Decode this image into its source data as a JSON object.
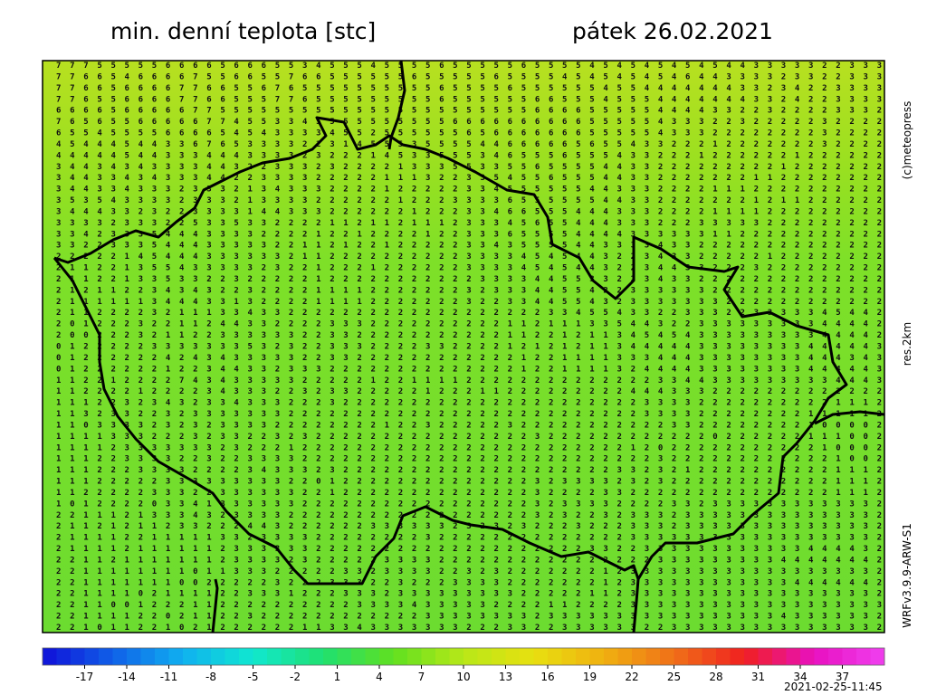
{
  "header": {
    "title": "min. denní teplota [stc]",
    "date": "pátek 26.02.2021"
  },
  "side_labels": {
    "copyright": "(c)meteopress",
    "resolution": "res.2km",
    "model": "WRFv3.9.9-ARW-S1"
  },
  "footer": {
    "timestamp": "2021-02-25-11:45"
  },
  "grid": {
    "rows": [
      "7775555566665666553455545555655555655554545454545443333322333",
      "7766546666755665576655555565555565555454545454644333323322333",
      "7766566667766556765555555555655556555555455444444433234223333",
      "7765566667766555776555555555655555566555455544444443324223333",
      "6666566666775555555555555555555555566665555544443322322223332",
      "7656556666677455334555555555566666666665555543332232222232222",
      "6554555566665454333345525555556566666665555543332222222232222",
      "4544454433676533332231455535555446666656554332221222222232222",
      "4444454433344433332322214533555346555655543322212222221222222",
      "3443434333344322333232222133355335565555443322222222212222222",
      "3443343433344223333222221113223354556555443322222221122222222",
      "3443343332333213433322221222223345555554433322221112222222222",
      "3535433332333213333222222122233336555555443322222221211222222",
      "3444332322333314433322222212223346655544433322221111222222222",
      "3333233322533533222211211211123334565544433322233333222222222",
      "3342333544433332222122122221223336555544443333331122222222222",
      "3322333544433333221121221222223343555544333343322222222222222",
      "2222214544433333321122222222223333454544322343322222122222222",
      "2112213554333332322122212222223333454544322344332223222222222",
      "2112213353322322222122222222222333344553322343322222222222222",
      "2121122343432232222111122222223233344554223333332222222222222",
      "2111111344433132222111122222223223344554323333333222222222222",
      "2112222321113343322222222222222222223345543322333223333345442",
      "2012223221124433222233322222222221121113354432233333333344442",
      "2002223211223333332233222222222221122121134545433333333344442",
      "0122222333333353232233322223322221212121134444433333333444443",
      "0122222242434333332233222222222222122111133344433333333444343",
      "0122222212234433233322222222222222122111132444433333333444443",
      "1122122227434333332222212211112222222222222233443333333334443",
      "1122221222234333223233222221222112222222224443332222222222222",
      "1112232343233433322232222222222222222222222333322222222221112",
      "1132332232333333322222222222222222222222222333322222222111112",
      "1103333232323333222222221223222223222222222223322222222100002",
      "1111333222323322323222222222222222232222222222220222222111002",
      "1111233333332322212222222222222222222222221202222222222210002",
      "1112233332232233332222222222222222222222222232222222222221002",
      "1112223333222234333232222222222222222222233232122222222221112",
      "1112222233333333322012222222222222232333323232222222222221112",
      "1122222333223333332212222222222222232222332222222222222221112",
      "1012222033413333332222222222222222232333322223323333333333332",
      "2211121333432333322222222222222222232322323332333333333333332",
      "2112121123322244322222233333323232322232223332333333333333332",
      "2111122111113323333222222223222222222222223333333333333333332",
      "2111121111112333333222222222222222222223322333333333333444432",
      "2211211111112333323222223333222222222222222233333333344444442",
      "2211111111011333222223323333223232222222123333333333333333332",
      "2211111110022222322233322322233332222222123333333333334444442",
      "2211110211112233312223332333333333222221123333333333333333332",
      "2211001222112222222222333343333322221122223333333333333333333",
      "2211112202112232222222222223333333323333333333333333343333332",
      "2210112210212222221133433333332223322333333223333333333333332"
    ]
  },
  "colorbar": {
    "lim": [
      -20,
      40
    ],
    "stops": [
      "#1010d8",
      "#1060e8",
      "#10b0f0",
      "#10e8d0",
      "#20e070",
      "#60e020",
      "#b8e818",
      "#e8e010",
      "#f0b010",
      "#f07018",
      "#f02020",
      "#e810c0",
      "#f040f0"
    ],
    "ticks": [
      -17,
      -14,
      -11,
      -8,
      -5,
      -2,
      1,
      4,
      7,
      10,
      13,
      16,
      19,
      22,
      25,
      28,
      31,
      34,
      37
    ]
  }
}
